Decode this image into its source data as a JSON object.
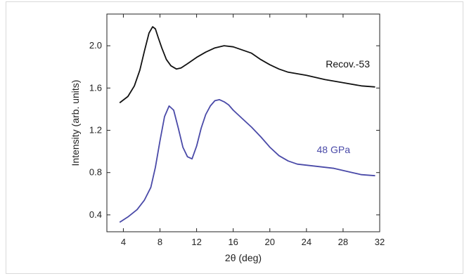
{
  "chart_data": {
    "type": "line",
    "xlabel": "2θ (deg)",
    "ylabel": "Intensity (arb. units)",
    "xlim": [
      2.2,
      32
    ],
    "ylim": [
      0.24,
      2.3
    ],
    "x_ticks": [
      4,
      8,
      12,
      16,
      20,
      24,
      28,
      32
    ],
    "x_tick_labels": [
      "4",
      "8",
      "12",
      "16",
      "20",
      "24",
      "28",
      "32"
    ],
    "y_ticks": [
      0.4,
      0.8,
      1.2,
      1.6,
      2.0
    ],
    "y_tick_labels": [
      "0.4",
      "0.8",
      "1.2",
      "1.6",
      "2.0"
    ],
    "grid": false,
    "legend": "inline labels",
    "series": [
      {
        "name": "Recov.-53",
        "color": "#111111",
        "x": [
          3.6,
          4.5,
          5.2,
          5.8,
          6.3,
          6.8,
          7.2,
          7.5,
          7.8,
          8.2,
          8.7,
          9.2,
          9.8,
          10.3,
          11.0,
          12.0,
          13.0,
          14.0,
          15.0,
          16.0,
          17.0,
          18.0,
          19.0,
          20.0,
          21.0,
          22.0,
          24.0,
          26.0,
          28.0,
          30.0,
          31.5
        ],
        "y": [
          1.46,
          1.52,
          1.62,
          1.77,
          1.95,
          2.12,
          2.18,
          2.16,
          2.08,
          1.98,
          1.87,
          1.81,
          1.78,
          1.79,
          1.83,
          1.89,
          1.94,
          1.98,
          2.0,
          1.99,
          1.96,
          1.93,
          1.87,
          1.82,
          1.78,
          1.75,
          1.72,
          1.68,
          1.65,
          1.62,
          1.61
        ]
      },
      {
        "name": "48 GPa",
        "color": "#4a4aa8",
        "x": [
          3.6,
          4.5,
          5.5,
          6.3,
          7.0,
          7.5,
          8.0,
          8.5,
          9.0,
          9.5,
          10.0,
          10.5,
          11.0,
          11.5,
          12.0,
          12.5,
          13.0,
          13.5,
          14.0,
          14.5,
          15.0,
          15.5,
          16.0,
          17.0,
          18.0,
          19.0,
          20.0,
          21.0,
          22.0,
          23.0,
          24.0,
          25.0,
          26.0,
          27.0,
          28.0,
          29.0,
          30.0,
          31.5
        ],
        "y": [
          0.33,
          0.38,
          0.45,
          0.54,
          0.66,
          0.85,
          1.1,
          1.33,
          1.43,
          1.39,
          1.22,
          1.04,
          0.95,
          0.93,
          1.05,
          1.22,
          1.35,
          1.43,
          1.48,
          1.49,
          1.47,
          1.44,
          1.39,
          1.31,
          1.23,
          1.14,
          1.04,
          0.96,
          0.91,
          0.88,
          0.87,
          0.86,
          0.85,
          0.84,
          0.82,
          0.8,
          0.78,
          0.77
        ]
      }
    ]
  }
}
